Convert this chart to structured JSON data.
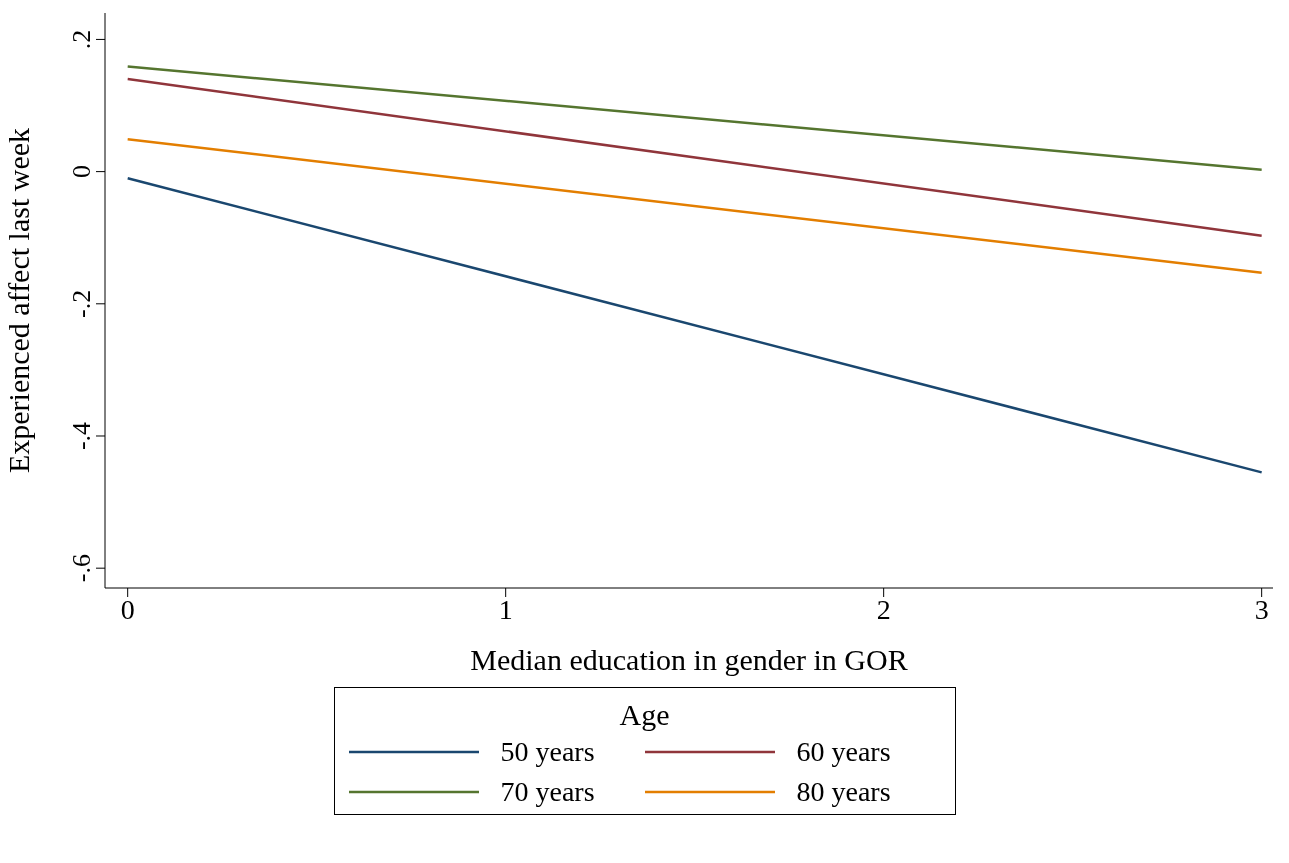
{
  "chart_data": {
    "type": "line",
    "xlabel": "Median education in gender in GOR",
    "ylabel": "Experienced affect last week",
    "legend_title": "Age",
    "legend": "bottom",
    "grid": false,
    "marker": "none",
    "line_style": "solid",
    "x": [
      0,
      3
    ],
    "xlim": [
      -0.06,
      3.03
    ],
    "xticks": [
      0,
      1,
      2,
      3
    ],
    "ylim": [
      -0.63,
      0.24
    ],
    "yticks": [
      {
        "value": 0.2,
        "label": ".2"
      },
      0,
      {
        "value": -0.2,
        "label": "-.2"
      },
      {
        "value": -0.4,
        "label": "-.4"
      },
      {
        "value": -0.6,
        "label": "-.6"
      }
    ],
    "series": [
      {
        "name": "50 years",
        "color": "#1a476f",
        "values": [
          -0.01,
          -0.455
        ]
      },
      {
        "name": "60 years",
        "color": "#90353b",
        "values": [
          0.14,
          -0.097
        ]
      },
      {
        "name": "70 years",
        "color": "#55752f",
        "values": [
          0.159,
          0.003
        ]
      },
      {
        "name": "80 years",
        "color": "#e37e00",
        "values": [
          0.049,
          -0.153
        ]
      }
    ]
  }
}
